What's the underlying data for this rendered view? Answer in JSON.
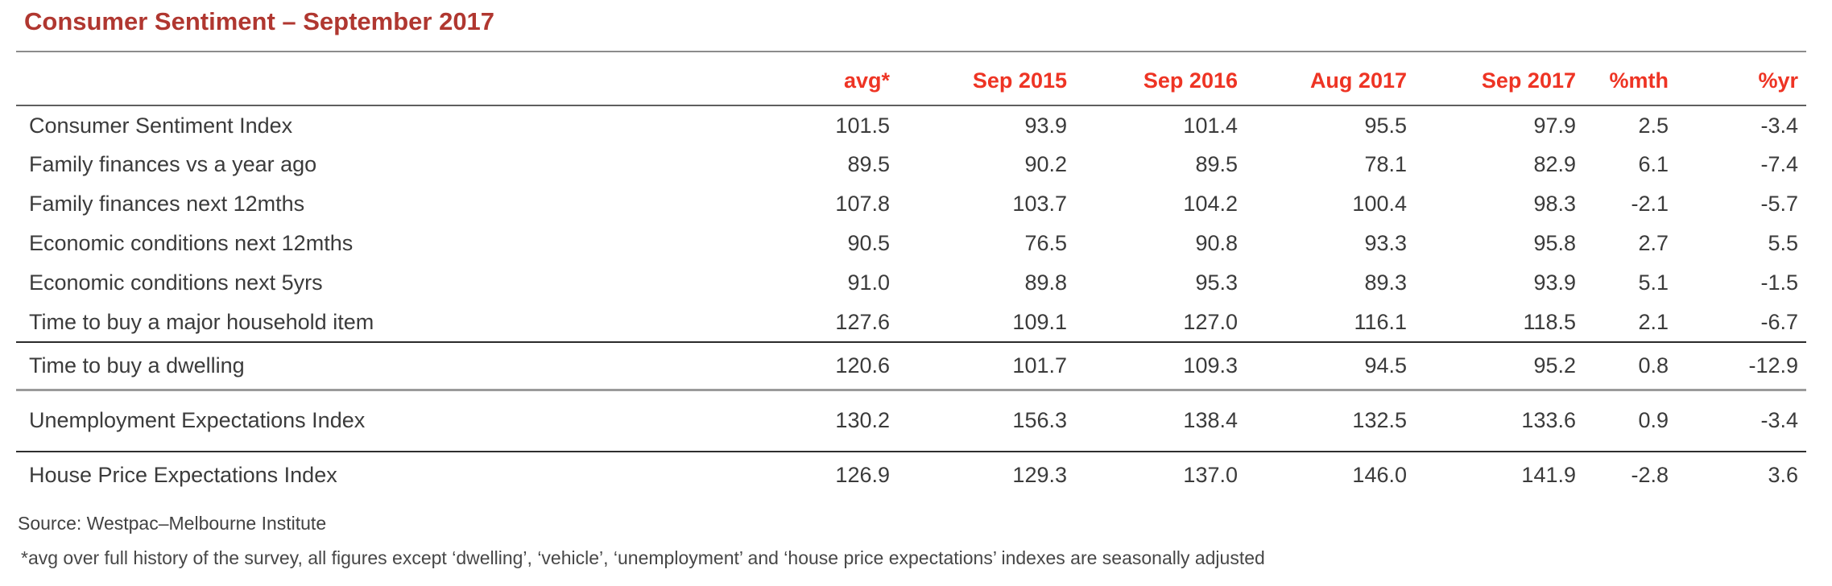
{
  "page": {
    "title": "Consumer Sentiment – September 2017",
    "source": "Source: Westpac–Melbourne Institute",
    "footnote": "*avg over full history of the survey, all figures except ‘dwelling’, ‘vehicle’, ‘unemployment’ and ‘house price expectations’ indexes are seasonally adjusted"
  },
  "colors": {
    "title_red": "#b03730",
    "header_red": "#ee3424",
    "body_text": "#3b3b3b",
    "rule_gray": "#8c8c8c",
    "rule_dark": "#2b2b2b"
  },
  "table": {
    "columns": [
      "avg*",
      "Sep 2015",
      "Sep 2016",
      "Aug 2017",
      "Sep 2017",
      "%mth",
      "%yr"
    ],
    "sections": [
      {
        "rows": [
          {
            "label": "Consumer Sentiment Index",
            "values": [
              "101.5",
              "93.9",
              "101.4",
              "95.5",
              "97.9",
              "2.5",
              "-3.4"
            ]
          },
          {
            "label": "Family finances vs a year ago",
            "values": [
              "89.5",
              "90.2",
              "89.5",
              "78.1",
              "82.9",
              "6.1",
              "-7.4"
            ]
          },
          {
            "label": "Family finances next 12mths",
            "values": [
              "107.8",
              "103.7",
              "104.2",
              "100.4",
              "98.3",
              "-2.1",
              "-5.7"
            ]
          },
          {
            "label": "Economic conditions next 12mths",
            "values": [
              "90.5",
              "76.5",
              "90.8",
              "93.3",
              "95.8",
              "2.7",
              "5.5"
            ]
          },
          {
            "label": "Economic conditions next 5yrs",
            "values": [
              "91.0",
              "89.8",
              "95.3",
              "89.3",
              "93.9",
              "5.1",
              "-1.5"
            ]
          },
          {
            "label": "Time to buy a major household item",
            "values": [
              "127.6",
              "109.1",
              "127.0",
              "116.1",
              "118.5",
              "2.1",
              "-6.7"
            ]
          }
        ]
      },
      {
        "rows": [
          {
            "label": "Time to buy a dwelling",
            "values": [
              "120.6",
              "101.7",
              "109.3",
              "94.5",
              "95.2",
              "0.8",
              "-12.9"
            ]
          }
        ]
      },
      {
        "rows": [
          {
            "label": "Unemployment Expectations Index",
            "values": [
              "130.2",
              "156.3",
              "138.4",
              "132.5",
              "133.6",
              "0.9",
              "-3.4"
            ]
          }
        ]
      },
      {
        "rows": [
          {
            "label": "House Price Expectations Index",
            "values": [
              "126.9",
              "129.3",
              "137.0",
              "146.0",
              "141.9",
              "-2.8",
              "3.6"
            ]
          }
        ]
      }
    ]
  },
  "chart_data": {
    "type": "table",
    "title": "Consumer Sentiment – September 2017",
    "columns": [
      "avg*",
      "Sep 2015",
      "Sep 2016",
      "Aug 2017",
      "Sep 2017",
      "%mth",
      "%yr"
    ],
    "rows": [
      {
        "label": "Consumer Sentiment Index",
        "values": [
          101.5,
          93.9,
          101.4,
          95.5,
          97.9,
          2.5,
          -3.4
        ]
      },
      {
        "label": "Family finances vs a year ago",
        "values": [
          89.5,
          90.2,
          89.5,
          78.1,
          82.9,
          6.1,
          -7.4
        ]
      },
      {
        "label": "Family finances next 12mths",
        "values": [
          107.8,
          103.7,
          104.2,
          100.4,
          98.3,
          -2.1,
          -5.7
        ]
      },
      {
        "label": "Economic conditions next 12mths",
        "values": [
          90.5,
          76.5,
          90.8,
          93.3,
          95.8,
          2.7,
          5.5
        ]
      },
      {
        "label": "Economic conditions next 5yrs",
        "values": [
          91.0,
          89.8,
          95.3,
          89.3,
          93.9,
          5.1,
          -1.5
        ]
      },
      {
        "label": "Time to buy a major household item",
        "values": [
          127.6,
          109.1,
          127.0,
          116.1,
          118.5,
          2.1,
          -6.7
        ]
      },
      {
        "label": "Time to buy a dwelling",
        "values": [
          120.6,
          101.7,
          109.3,
          94.5,
          95.2,
          0.8,
          -12.9
        ]
      },
      {
        "label": "Unemployment Expectations Index",
        "values": [
          130.2,
          156.3,
          138.4,
          132.5,
          133.6,
          0.9,
          -3.4
        ]
      },
      {
        "label": "House Price Expectations Index",
        "values": [
          126.9,
          129.3,
          137.0,
          146.0,
          141.9,
          -2.8,
          3.6
        ]
      }
    ],
    "source": "Source: Westpac–Melbourne Institute",
    "footnote": "*avg over full history of the survey, all figures except ‘dwelling’, ‘vehicle’, ‘unemployment’ and ‘house price expectations’ indexes are seasonally adjusted"
  }
}
